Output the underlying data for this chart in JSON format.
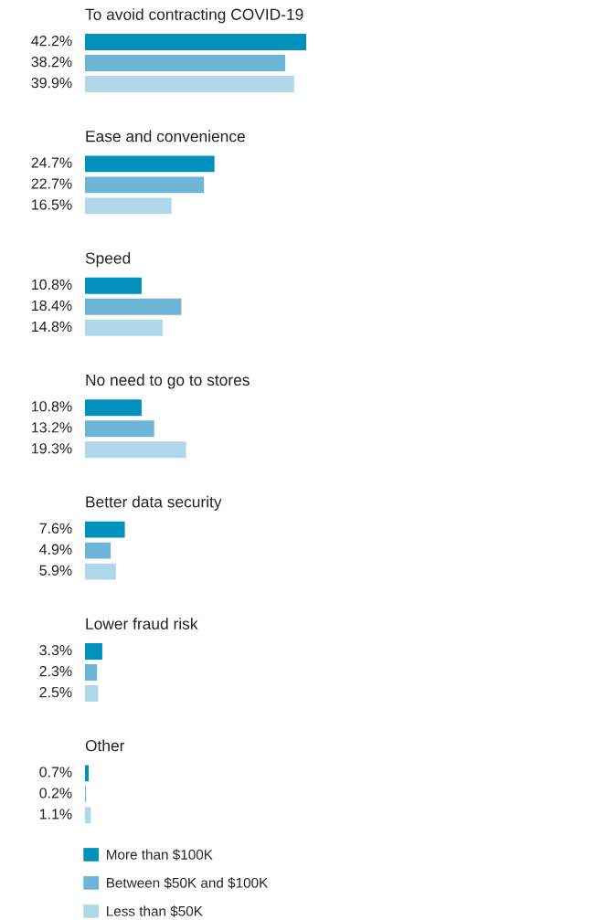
{
  "chart_data": {
    "type": "bar",
    "orientation": "horizontal",
    "categories": [
      "To avoid contracting COVID-19",
      "Ease and convenience",
      "Speed",
      "No need to go to stores",
      "Better data security",
      "Lower fraud risk",
      "Other"
    ],
    "series": [
      {
        "name": "More than $100K",
        "color": "#0092bc",
        "values": [
          42.2,
          24.7,
          10.8,
          10.8,
          7.6,
          3.3,
          0.7
        ],
        "value_labels": [
          "42.2%",
          "24.7%",
          "10.8%",
          "10.8%",
          "7.6%",
          "3.3%",
          "0.7%"
        ]
      },
      {
        "name": "Between $50K and $100K",
        "color": "#6db5d6",
        "values": [
          38.2,
          22.7,
          18.4,
          13.2,
          4.9,
          2.3,
          0.2
        ],
        "value_labels": [
          "38.2%",
          "22.7%",
          "18.4%",
          "13.2%",
          "4.9%",
          "2.3%",
          "0.2%"
        ]
      },
      {
        "name": "Less than $50K",
        "color": "#b0d8ea",
        "values": [
          39.9,
          16.5,
          14.8,
          19.3,
          5.9,
          2.5,
          1.1
        ],
        "value_labels": [
          "39.9%",
          "16.5%",
          "14.8%",
          "19.3%",
          "5.9%",
          "2.5%",
          "1.1%"
        ]
      }
    ],
    "tick_labels": false,
    "legend": "bottom"
  }
}
